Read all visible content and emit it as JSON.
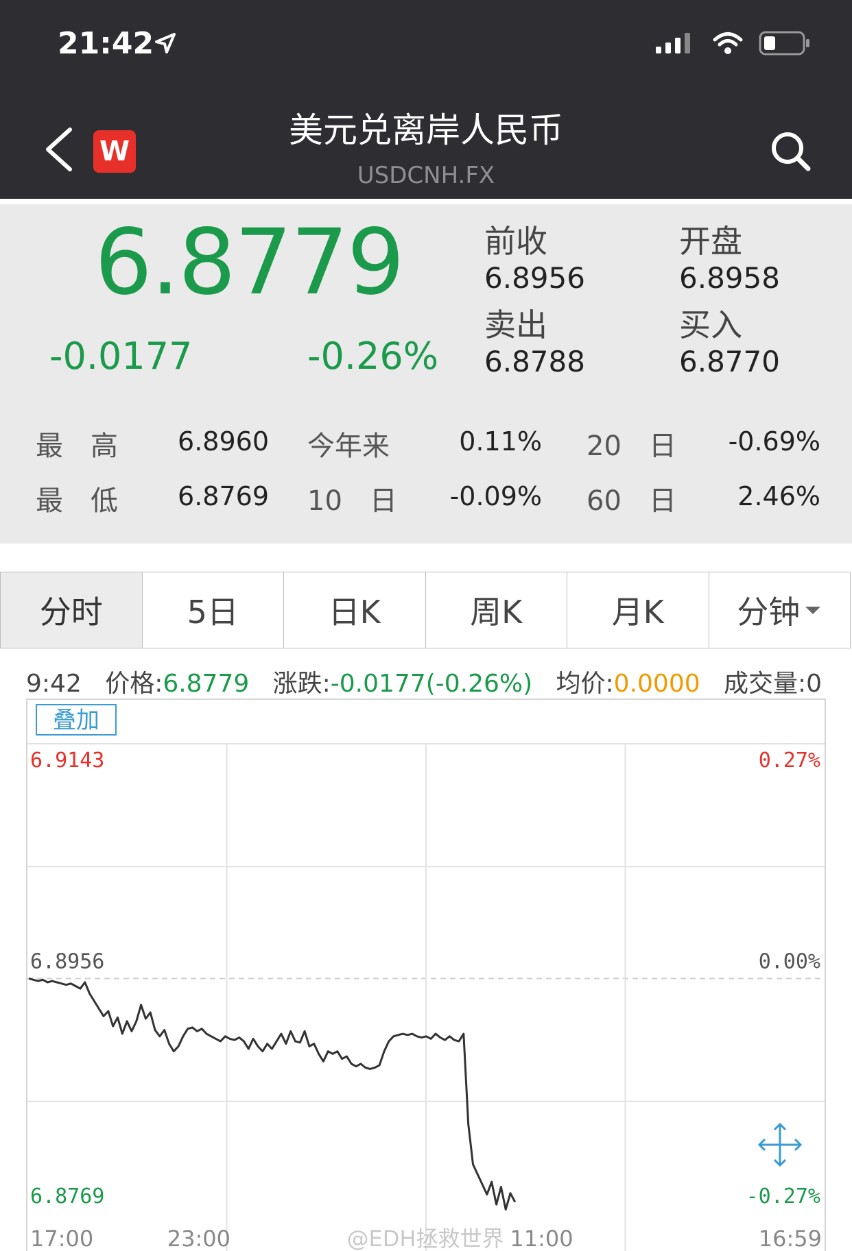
{
  "status_bar": {
    "time": "21:42"
  },
  "nav": {
    "title": "美元兑离岸人民币",
    "subtitle": "USDCNH.FX",
    "logo_letter": "W"
  },
  "quote": {
    "price": "6.8779",
    "change": "-0.0177",
    "change_pct": "-0.26%",
    "prev_close_label": "前收",
    "prev_close": "6.8956",
    "open_label": "开盘",
    "open": "6.8958",
    "sell_label": "卖出",
    "sell": "6.8788",
    "buy_label": "买入",
    "buy": "6.8770"
  },
  "stats": {
    "high_label": "最　高",
    "high": "6.8960",
    "low_label": "最　低",
    "low": "6.8769",
    "ytd_label": "今年来",
    "ytd": "0.11%",
    "d10_label": "10　日",
    "d10": "-0.09%",
    "d20_label": "20　日",
    "d20": "-0.69%",
    "d60_label": "60　日",
    "d60": "2.46%"
  },
  "tabs": [
    "分时",
    "5日",
    "日K",
    "周K",
    "月K",
    "分钟"
  ],
  "info_line": {
    "time": "9:42",
    "price_label": "价格:",
    "price": "6.8779",
    "change_label": "涨跌:",
    "change": "-0.0177(-0.26%)",
    "avg_label": "均价:",
    "avg": "0.0000",
    "volume_label": "成交量:",
    "volume": "0"
  },
  "overlay_button": "叠加",
  "watermark": "@EDH拯救世界",
  "colors": {
    "up": "#e8302a",
    "down": "#1a9a4a",
    "avg": "#f09a00",
    "accent": "#3a9bd5"
  },
  "chart_data": {
    "type": "line",
    "title": "",
    "xlabel": "",
    "ylabel": "",
    "ylim": [
      6.8769,
      6.9143
    ],
    "y_ref": 6.8956,
    "y_left_ticks": [
      "6.9143",
      "6.8956",
      "6.8769"
    ],
    "y_right_ticks": [
      "0.27%",
      "0.00%",
      "-0.27%"
    ],
    "x_tick_labels": [
      "17:00",
      "23:00",
      "11:00",
      "16:59"
    ],
    "grid": true,
    "series": [
      {
        "values": [
          6.8956,
          6.8955,
          6.8954,
          6.8955,
          6.8953,
          6.8954,
          6.8953,
          6.8952,
          6.8951,
          6.8952,
          6.895,
          6.8948,
          6.8953,
          6.8944,
          6.8938,
          6.8932,
          6.8926,
          6.893,
          6.8918,
          6.8925,
          6.8912,
          6.8922,
          6.8914,
          6.8922,
          6.8935,
          6.8924,
          6.8929,
          6.8915,
          6.891,
          6.8915,
          6.8904,
          6.8898,
          6.8902,
          6.891,
          6.8916,
          6.8917,
          6.8914,
          6.8916,
          6.8912,
          6.891,
          6.8908,
          6.8906,
          6.891,
          6.8908,
          6.8907,
          6.8909,
          6.8906,
          6.89,
          6.8908,
          6.8902,
          6.8898,
          6.8904,
          6.89,
          6.8906,
          6.8912,
          6.8904,
          6.8914,
          6.8906,
          6.8905,
          6.8914,
          6.8902,
          6.8904,
          6.8896,
          6.889,
          6.8898,
          6.8896,
          6.8898,
          6.8892,
          6.8894,
          6.8888,
          6.8886,
          6.8888,
          6.8885,
          6.8884,
          6.8885,
          6.8887,
          6.8898,
          6.8906,
          6.891,
          6.8911,
          6.8912,
          6.8911,
          6.8912,
          6.891,
          6.8909,
          6.891,
          6.8908,
          6.8912,
          6.8909,
          6.8907,
          6.891,
          6.8907,
          6.8906,
          6.8912,
          6.884,
          6.8808,
          6.88,
          6.8792,
          6.8784,
          6.8794,
          6.8776,
          6.879,
          6.8772,
          6.8785,
          6.8778
        ]
      }
    ]
  }
}
